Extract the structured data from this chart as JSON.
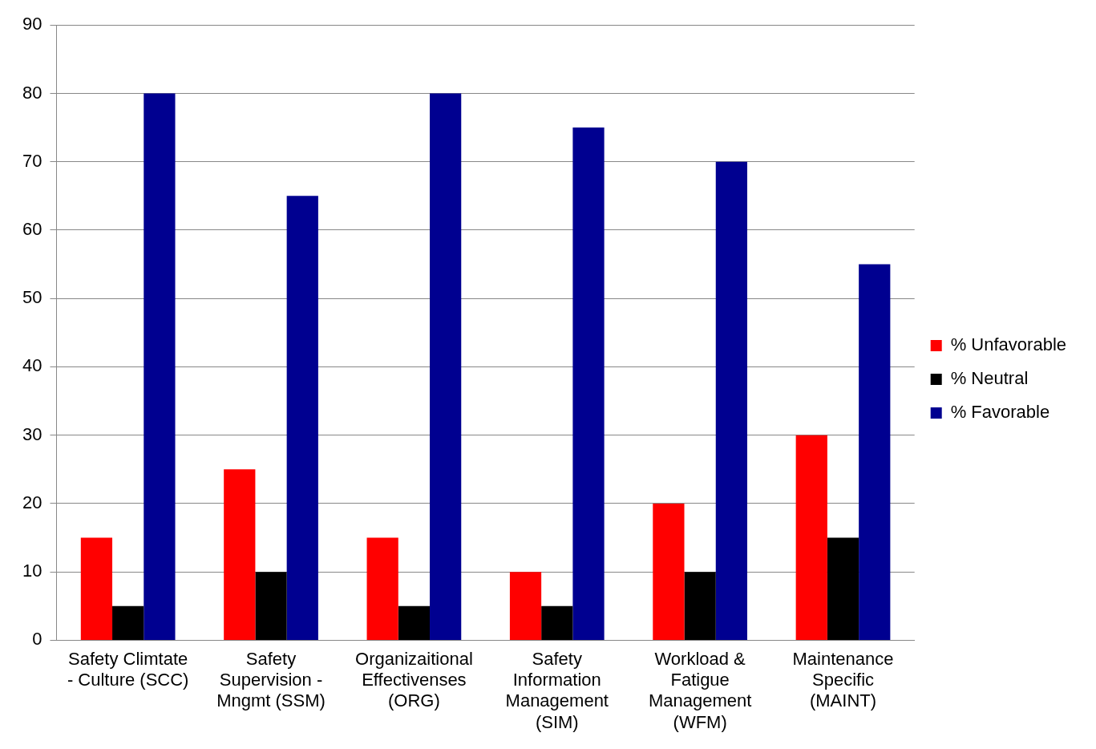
{
  "chart_data": {
    "type": "bar",
    "categories": [
      "Safety Climtate - Culture (SCC)",
      "Safety Supervision - Mngmt (SSM)",
      "Organizaitional Effectivenses (ORG)",
      "Safety Information Management (SIM)",
      "Workload & Fatigue Management (WFM)",
      "Maintenance Specific (MAINT)"
    ],
    "series": [
      {
        "name": "% Unfavorable",
        "color": "#ff0000",
        "values": [
          15,
          25,
          15,
          10,
          20,
          30
        ]
      },
      {
        "name": "% Neutral",
        "color": "#000000",
        "values": [
          5,
          10,
          5,
          5,
          10,
          15
        ]
      },
      {
        "name": "% Favorable",
        "color": "#000090",
        "values": [
          80,
          65,
          80,
          75,
          70,
          55
        ]
      }
    ],
    "ylim": [
      0,
      90
    ],
    "yticks": [
      0,
      10,
      20,
      30,
      40,
      50,
      60,
      70,
      80,
      90
    ],
    "grid": "y",
    "legend": "right"
  }
}
